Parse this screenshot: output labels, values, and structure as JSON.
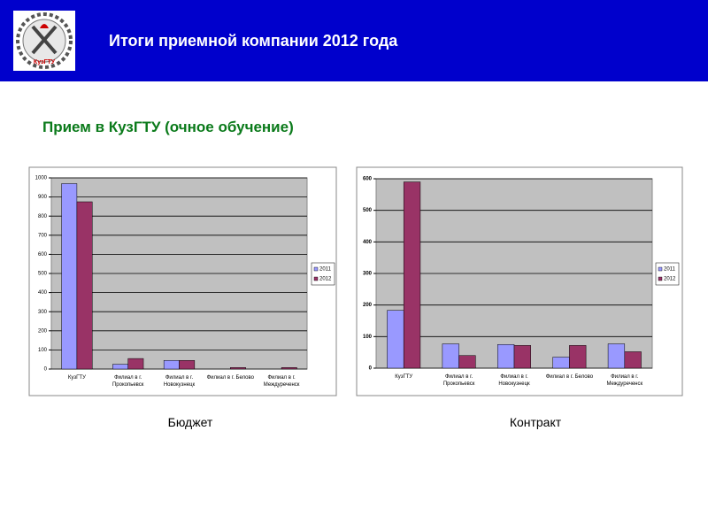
{
  "header": {
    "title": "Итоги приемной компании 2012 года",
    "logo_text": "КузГТУ"
  },
  "subtitle": "Прием в КузГТУ (очное обучение)",
  "chart_data": [
    {
      "type": "bar",
      "caption": "Бюджет",
      "categories": [
        "КузГТУ",
        "Филиал в г. Прокопьевск",
        "Филиал в г. Новокузнецк",
        "Филиал в г. Белово",
        "Филиал в г. Междуреченск"
      ],
      "series": [
        {
          "name": "2011",
          "color": "#9999ff",
          "values": [
            970,
            25,
            45,
            0,
            0
          ]
        },
        {
          "name": "2012",
          "color": "#993366",
          "values": [
            875,
            55,
            45,
            8,
            8
          ]
        }
      ],
      "ylim": [
        0,
        1000
      ],
      "yticks": [
        0,
        100,
        200,
        300,
        400,
        500,
        600,
        700,
        800,
        900,
        1000
      ],
      "grid": true,
      "legend": "right"
    },
    {
      "type": "bar",
      "caption": "Контракт",
      "categories": [
        "КузГТУ",
        "Филиал в г. Прокопьевск",
        "Филиал в г. Новокузнецк",
        "Филиал в г. Белово",
        "Филиал в г. Междуреченск"
      ],
      "series": [
        {
          "name": "2011",
          "color": "#9999ff",
          "values": [
            183,
            77,
            75,
            35,
            77
          ]
        },
        {
          "name": "2012",
          "color": "#993366",
          "values": [
            590,
            40,
            72,
            72,
            52
          ]
        }
      ],
      "ylim": [
        0,
        600
      ],
      "yticks": [
        0,
        100,
        200,
        300,
        400,
        500,
        600
      ],
      "grid": true,
      "legend": "right"
    }
  ]
}
